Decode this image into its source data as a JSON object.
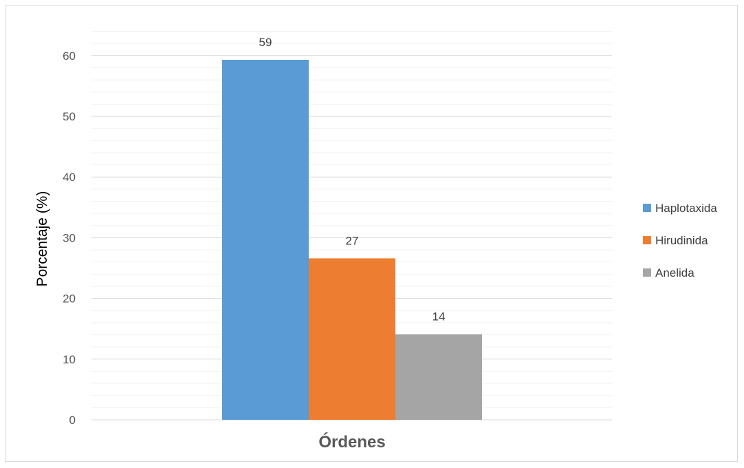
{
  "chart_data": {
    "type": "bar",
    "xlabel": "Órdenes",
    "ylabel": "Porcentaje (%)",
    "ylim": [
      0,
      65
    ],
    "yticks": [
      0,
      10,
      20,
      30,
      40,
      50,
      60
    ],
    "grid": true,
    "minor_grid": true,
    "legend_position": "right",
    "series": [
      {
        "name": "Haplotaxida",
        "value": 59.3,
        "label": "59",
        "color": "#5b9bd5"
      },
      {
        "name": "Hirudinida",
        "value": 26.6,
        "label": "27",
        "color": "#ed7d31"
      },
      {
        "name": "Anelida",
        "value": 14.1,
        "label": "14",
        "color": "#a5a5a5"
      }
    ]
  }
}
